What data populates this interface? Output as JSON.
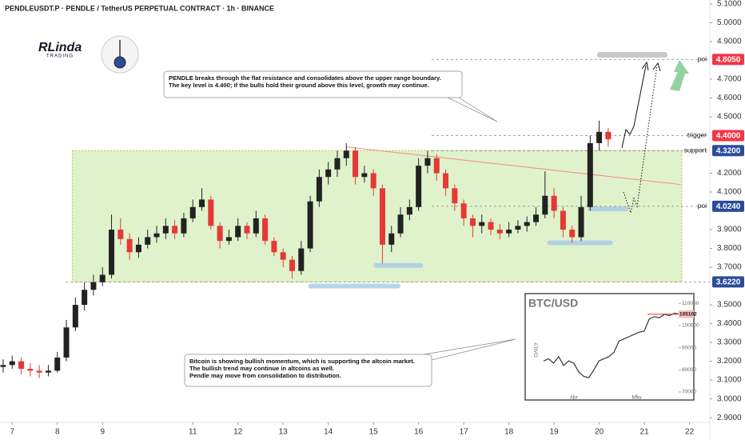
{
  "chart_data": {
    "type": "candlestick",
    "title": "PENDLEUSDT.P · PENDLE / TetherUS PERPETUAL CONTRACT · 1h · BINANCE",
    "logo": "RLinda",
    "logo_sub": "TRADING",
    "up_color": "#222222",
    "down_color": "#e53935",
    "xlim": [
      6.73,
      22.45
    ],
    "ylim": [
      2.875,
      5.121
    ],
    "xticks": [
      7,
      8,
      9,
      11,
      12,
      13,
      14,
      15,
      16,
      17,
      18,
      19,
      20,
      21,
      22
    ],
    "yticks": [
      {
        "value": 5.1,
        "label": "5.1000"
      },
      {
        "value": 5.0,
        "label": "5.0000"
      },
      {
        "value": 4.9,
        "label": "4.9000"
      },
      {
        "value": 4.7,
        "label": "4.7000"
      },
      {
        "value": 4.6,
        "label": "4.6000"
      },
      {
        "value": 4.5,
        "label": "4.5000"
      },
      {
        "value": 4.2,
        "label": "4.2000"
      },
      {
        "value": 4.1,
        "label": "4.1000"
      },
      {
        "value": 3.9,
        "label": "3.9000"
      },
      {
        "value": 3.8,
        "label": "3.8000"
      },
      {
        "value": 3.7,
        "label": "3.7000"
      },
      {
        "value": 3.5,
        "label": "3.5000"
      },
      {
        "value": 3.4,
        "label": "3.4000"
      },
      {
        "value": 3.3,
        "label": "3.3000"
      },
      {
        "value": 3.2,
        "label": "3.2000"
      },
      {
        "value": 3.1,
        "label": "3.1000"
      },
      {
        "value": 3.0,
        "label": "3.0000"
      },
      {
        "value": 2.9,
        "label": "2.9000"
      }
    ],
    "levels": [
      {
        "value": 4.805,
        "value_label": "4.8050",
        "label": "poi",
        "color": "#f23645"
      },
      {
        "value": 4.4,
        "value_label": "4.4000",
        "label": "trigger",
        "color": "#f23645"
      },
      {
        "value": 4.32,
        "value_label": "4.3200",
        "label": "support",
        "color": "#2a4c9c"
      },
      {
        "value": 4.024,
        "value_label": "4.0240",
        "label": "poi",
        "color": "#2a4c9c"
      },
      {
        "value": 3.622,
        "value_label": "3.6220",
        "color": "#2a4c9c"
      }
    ],
    "candles": [
      [
        6.8,
        3.17,
        3.21,
        3.14,
        3.18
      ],
      [
        7.0,
        3.18,
        3.23,
        3.16,
        3.2
      ],
      [
        7.2,
        3.2,
        3.22,
        3.13,
        3.16
      ],
      [
        7.4,
        3.16,
        3.19,
        3.12,
        3.15
      ],
      [
        7.6,
        3.15,
        3.18,
        3.11,
        3.14
      ],
      [
        7.8,
        3.14,
        3.18,
        3.12,
        3.15
      ],
      [
        8.0,
        3.15,
        3.25,
        3.14,
        3.22
      ],
      [
        8.2,
        3.22,
        3.42,
        3.2,
        3.38
      ],
      [
        8.4,
        3.38,
        3.54,
        3.36,
        3.5
      ],
      [
        8.6,
        3.5,
        3.62,
        3.47,
        3.58
      ],
      [
        8.8,
        3.58,
        3.66,
        3.55,
        3.62
      ],
      [
        9.0,
        3.62,
        3.7,
        3.6,
        3.66
      ],
      [
        9.2,
        3.66,
        3.98,
        3.64,
        3.9
      ],
      [
        9.4,
        3.9,
        3.96,
        3.82,
        3.85
      ],
      [
        9.6,
        3.85,
        3.88,
        3.74,
        3.78
      ],
      [
        9.8,
        3.78,
        3.86,
        3.75,
        3.82
      ],
      [
        10.0,
        3.82,
        3.9,
        3.8,
        3.86
      ],
      [
        10.2,
        3.86,
        3.92,
        3.83,
        3.88
      ],
      [
        10.4,
        3.88,
        3.96,
        3.85,
        3.92
      ],
      [
        10.6,
        3.92,
        3.95,
        3.85,
        3.88
      ],
      [
        10.8,
        3.88,
        3.99,
        3.86,
        3.96
      ],
      [
        11.0,
        3.96,
        4.06,
        3.94,
        4.02
      ],
      [
        11.2,
        4.02,
        4.12,
        4.0,
        4.06
      ],
      [
        11.4,
        4.06,
        4.08,
        3.9,
        3.92
      ],
      [
        11.6,
        3.92,
        3.94,
        3.8,
        3.84
      ],
      [
        11.8,
        3.84,
        3.9,
        3.82,
        3.86
      ],
      [
        12.0,
        3.86,
        3.96,
        3.84,
        3.92
      ],
      [
        12.2,
        3.92,
        3.94,
        3.85,
        3.88
      ],
      [
        12.4,
        3.88,
        4.0,
        3.86,
        3.96
      ],
      [
        12.6,
        3.96,
        3.98,
        3.82,
        3.84
      ],
      [
        12.8,
        3.84,
        3.86,
        3.76,
        3.78
      ],
      [
        13.0,
        3.78,
        3.8,
        3.7,
        3.74
      ],
      [
        13.2,
        3.74,
        3.76,
        3.64,
        3.68
      ],
      [
        13.4,
        3.68,
        3.84,
        3.66,
        3.8
      ],
      [
        13.6,
        3.8,
        4.08,
        3.78,
        4.05
      ],
      [
        13.8,
        4.05,
        4.22,
        4.02,
        4.18
      ],
      [
        14.0,
        4.18,
        4.26,
        4.14,
        4.22
      ],
      [
        14.2,
        4.22,
        4.32,
        4.18,
        4.28
      ],
      [
        14.4,
        4.28,
        4.36,
        4.24,
        4.32
      ],
      [
        14.6,
        4.32,
        4.34,
        4.14,
        4.18
      ],
      [
        14.8,
        4.18,
        4.24,
        4.15,
        4.2
      ],
      [
        15.0,
        4.2,
        4.22,
        4.08,
        4.12
      ],
      [
        15.2,
        4.12,
        4.14,
        3.72,
        3.82
      ],
      [
        15.4,
        3.82,
        3.92,
        3.78,
        3.88
      ],
      [
        15.6,
        3.88,
        4.02,
        3.86,
        3.98
      ],
      [
        15.8,
        3.98,
        4.06,
        3.95,
        4.02
      ],
      [
        16.0,
        4.02,
        4.28,
        4.0,
        4.24
      ],
      [
        16.2,
        4.24,
        4.32,
        4.2,
        4.28
      ],
      [
        16.4,
        4.28,
        4.3,
        4.16,
        4.2
      ],
      [
        16.6,
        4.2,
        4.22,
        4.08,
        4.12
      ],
      [
        16.8,
        4.12,
        4.14,
        4.0,
        4.04
      ],
      [
        17.0,
        4.04,
        4.06,
        3.92,
        3.96
      ],
      [
        17.2,
        3.96,
        3.98,
        3.86,
        3.92
      ],
      [
        17.4,
        3.92,
        3.98,
        3.88,
        3.94
      ],
      [
        17.6,
        3.94,
        3.96,
        3.87,
        3.9
      ],
      [
        17.8,
        3.9,
        3.93,
        3.85,
        3.88
      ],
      [
        18.0,
        3.88,
        3.94,
        3.86,
        3.9
      ],
      [
        18.2,
        3.9,
        3.95,
        3.88,
        3.92
      ],
      [
        18.4,
        3.92,
        3.97,
        3.89,
        3.94
      ],
      [
        18.6,
        3.94,
        4.02,
        3.92,
        3.98
      ],
      [
        18.8,
        3.98,
        4.21,
        3.96,
        4.08
      ],
      [
        19.0,
        4.08,
        4.12,
        3.96,
        4.0
      ],
      [
        19.2,
        4.0,
        4.02,
        3.86,
        3.9
      ],
      [
        19.4,
        3.9,
        3.92,
        3.83,
        3.86
      ],
      [
        19.6,
        3.86,
        4.08,
        3.84,
        4.02
      ],
      [
        19.8,
        4.02,
        4.4,
        4.0,
        4.36
      ],
      [
        20.0,
        4.36,
        4.48,
        4.32,
        4.42
      ],
      [
        20.2,
        4.42,
        4.44,
        4.34,
        4.38
      ]
    ],
    "annotations": [
      [
        "PENDLE breaks through the flat resistance and consolidates above the upper range boundary.",
        "The key level is 4.400; if the bulls hold their ground above this level, growth may continue."
      ],
      [
        "Bitcoin is showing bullish momentum, which is supporting the altcoin market.",
        "The bullish trend may continue in altcoins as well.",
        "Pendle may move from consolidation to distribution."
      ]
    ],
    "inset": {
      "type": "line",
      "title": "BTC/USD",
      "axis_label": "DAILY",
      "color": "#333333",
      "xlim": [
        0,
        27
      ],
      "ylim": [
        66400,
        114400
      ],
      "xticks": [
        {
          "value": 6,
          "label": "Apr"
        },
        {
          "value": 18.5,
          "label": "May"
        }
      ],
      "yticks": [
        110000,
        100000,
        90000,
        80000,
        70000
      ],
      "values": [
        84000,
        85000,
        83000,
        86000,
        82000,
        84000,
        83000,
        79000,
        77000,
        76500,
        80000,
        84000,
        85000,
        86000,
        88000,
        93000,
        94000,
        95000,
        96000,
        97000,
        97500,
        103000,
        104000,
        103500,
        105000,
        104500,
        105500,
        105102
      ],
      "last": 105102
    }
  }
}
